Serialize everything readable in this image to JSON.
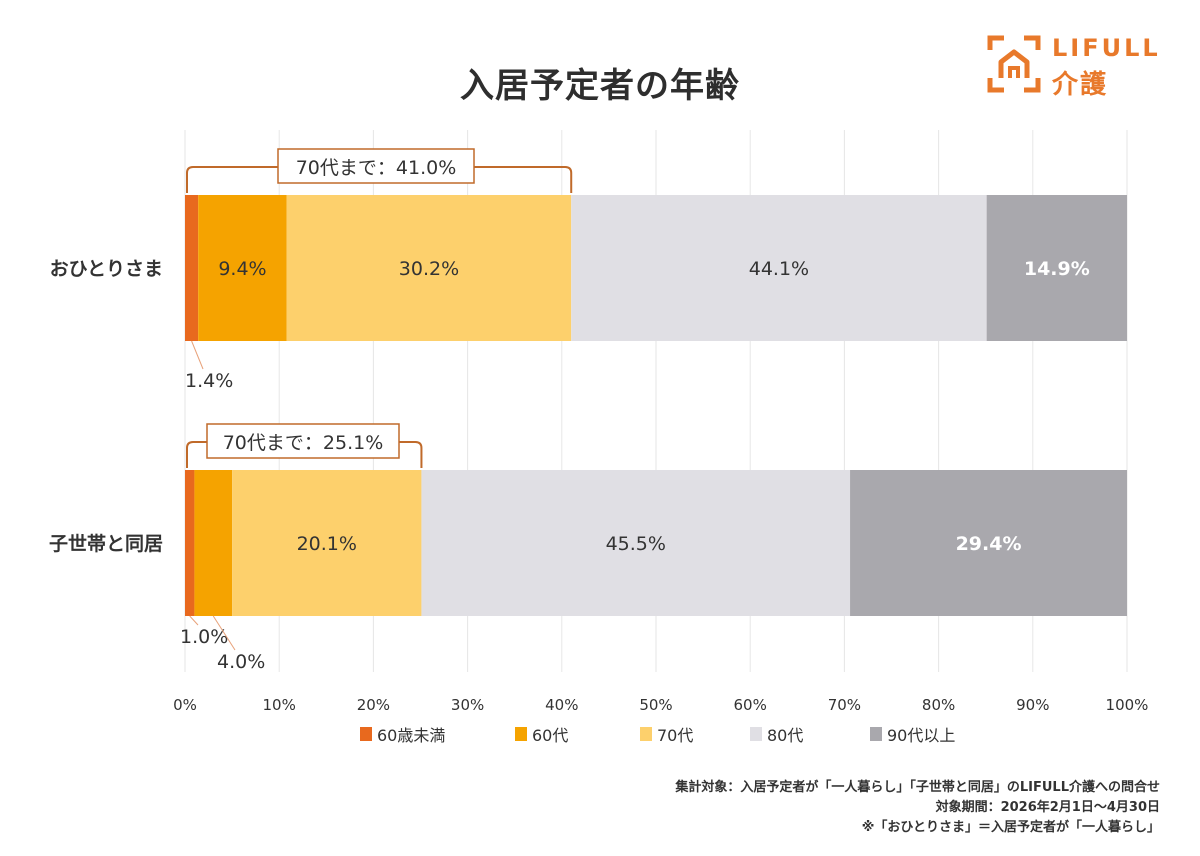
{
  "title": "入居予定者の年齢",
  "logo": {
    "text": "LIFULL",
    "sub": "介護"
  },
  "footnotes": [
    "集計対象：入居予定者が「一人暮らし」「子世帯と同居」のLIFULL介護への問合せ",
    "対象期間：2026年2月1日〜4月30日",
    "※「おひとりさま」＝入居予定者が「一人暮らし」"
  ],
  "chart_data": {
    "type": "bar",
    "orientation": "horizontal",
    "stacked": true,
    "categories": [
      "おひとりさま",
      "子世帯と同居"
    ],
    "series": [
      {
        "name": "60歳未満",
        "values": [
          1.4,
          1.0
        ],
        "labels": [
          "1.4%",
          "1.0%"
        ],
        "color": "#e8691e"
      },
      {
        "name": "60代",
        "values": [
          9.4,
          4.0
        ],
        "labels": [
          "9.4%",
          "4.0%"
        ],
        "color": "#f5a300"
      },
      {
        "name": "70代",
        "values": [
          30.2,
          20.1
        ],
        "labels": [
          "30.2%",
          "20.1%"
        ],
        "color": "#fdd06c"
      },
      {
        "name": "80代",
        "values": [
          44.1,
          45.5
        ],
        "labels": [
          "44.1%",
          "45.5%"
        ],
        "color": "#e0dfe4"
      },
      {
        "name": "90代以上",
        "values": [
          14.9,
          29.4
        ],
        "labels": [
          "14.9%",
          "29.4%"
        ],
        "color": "#a9a8ad"
      }
    ],
    "brackets": [
      "70代まで：41.0%",
      "70代まで：25.1%"
    ],
    "bracket_values": [
      41.0,
      25.1
    ],
    "xticks": [
      "0%",
      "10%",
      "20%",
      "30%",
      "40%",
      "50%",
      "60%",
      "70%",
      "80%",
      "90%",
      "100%"
    ],
    "xlim": [
      0,
      100
    ],
    "grid": true,
    "legend": "bottom"
  }
}
